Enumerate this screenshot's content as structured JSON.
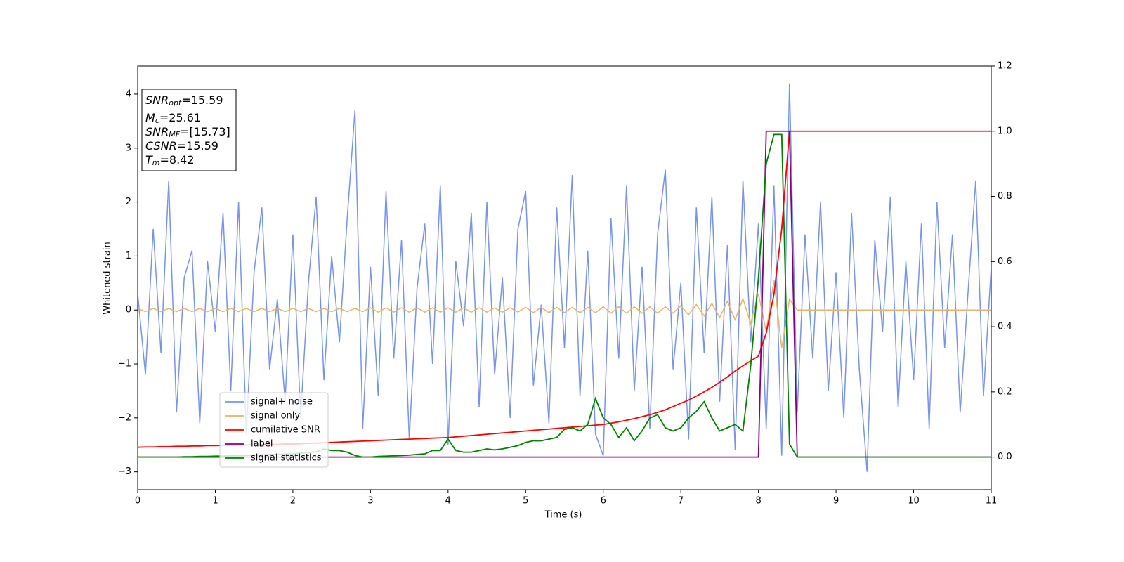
{
  "chart_data": {
    "type": "line",
    "xlabel": "Time (s)",
    "ylabel": "Whitened strain",
    "x": [
      0,
      0.1,
      0.2,
      0.3,
      0.4,
      0.5,
      0.6,
      0.7,
      0.8,
      0.9,
      1,
      1.1,
      1.2,
      1.3,
      1.4,
      1.5,
      1.6,
      1.7,
      1.8,
      1.9,
      2,
      2.1,
      2.2,
      2.3,
      2.4,
      2.5,
      2.6,
      2.7,
      2.8,
      2.9,
      3,
      3.1,
      3.2,
      3.3,
      3.4,
      3.5,
      3.6,
      3.7,
      3.8,
      3.9,
      4,
      4.1,
      4.2,
      4.3,
      4.4,
      4.5,
      4.6,
      4.7,
      4.8,
      4.9,
      5,
      5.1,
      5.2,
      5.3,
      5.4,
      5.5,
      5.6,
      5.7,
      5.8,
      5.9,
      6,
      6.1,
      6.2,
      6.3,
      6.4,
      6.5,
      6.6,
      6.7,
      6.8,
      6.9,
      7,
      7.1,
      7.2,
      7.3,
      7.4,
      7.5,
      7.6,
      7.7,
      7.8,
      7.9,
      8,
      8.1,
      8.2,
      8.3,
      8.4,
      8.5,
      8.6,
      8.7,
      8.8,
      8.9,
      9,
      9.1,
      9.2,
      9.3,
      9.4,
      9.5,
      9.6,
      9.7,
      9.8,
      9.9,
      10,
      10.1,
      10.2,
      10.3,
      10.4,
      10.5,
      10.6,
      10.7,
      10.8,
      10.9,
      11
    ],
    "series": [
      {
        "name": "signal+ noise",
        "color": "#7894e6",
        "axis": "y",
        "values": [
          0.3,
          -1.2,
          1.5,
          -0.8,
          2.4,
          -1.9,
          0.6,
          1.1,
          -2.1,
          0.9,
          -0.4,
          1.8,
          -1.5,
          2.0,
          -2.3,
          0.7,
          1.9,
          -1.1,
          0.2,
          -1.7,
          1.4,
          -2.0,
          0.5,
          2.1,
          -1.3,
          1.0,
          -0.6,
          1.7,
          3.7,
          -2.2,
          0.8,
          -1.6,
          2.2,
          -0.9,
          1.3,
          -2.4,
          0.4,
          1.6,
          -1.0,
          2.3,
          -2.5,
          0.9,
          -0.3,
          1.8,
          -1.8,
          2.0,
          -1.2,
          0.6,
          -2.0,
          1.5,
          2.2,
          -1.4,
          0.1,
          -2.1,
          1.9,
          -0.7,
          2.5,
          -1.6,
          1.1,
          -2.3,
          -2.7,
          1.7,
          -0.9,
          2.3,
          -1.5,
          0.8,
          -2.2,
          1.4,
          2.6,
          -1.1,
          0.5,
          -2.4,
          1.9,
          -0.8,
          2.1,
          -1.7,
          1.2,
          -2.6,
          2.4,
          -0.6,
          1.6,
          -2.2,
          2.3,
          -2.7,
          4.2,
          -1.9,
          1.4,
          -0.9,
          2.0,
          -1.5,
          0.7,
          -2.0,
          1.8,
          -1.1,
          -3.0,
          1.3,
          -0.4,
          2.1,
          -1.8,
          0.9,
          -1.3,
          1.6,
          -2.2,
          2.0,
          -0.7,
          1.4,
          -1.9,
          0.3,
          2.4,
          -1.6,
          0.8
        ]
      },
      {
        "name": "signal only",
        "color": "#e8b36a",
        "axis": "y",
        "values": [
          0.03,
          -0.03,
          0.03,
          -0.03,
          0.03,
          -0.03,
          0.03,
          -0.03,
          0.03,
          -0.03,
          0.03,
          -0.03,
          0.03,
          -0.03,
          0.03,
          -0.03,
          0.03,
          -0.03,
          0.03,
          -0.03,
          0.03,
          -0.03,
          0.03,
          -0.03,
          0.03,
          -0.03,
          0.03,
          -0.03,
          0.03,
          -0.03,
          0.04,
          -0.04,
          0.04,
          -0.04,
          0.04,
          -0.04,
          0.04,
          -0.04,
          0.04,
          -0.04,
          0.04,
          -0.04,
          0.04,
          -0.04,
          0.04,
          -0.04,
          0.04,
          -0.04,
          0.04,
          -0.04,
          0.05,
          -0.05,
          0.05,
          -0.05,
          0.05,
          -0.05,
          0.05,
          -0.05,
          0.05,
          -0.05,
          0.06,
          -0.06,
          0.06,
          -0.06,
          0.06,
          -0.06,
          0.06,
          -0.06,
          0.06,
          -0.06,
          0.08,
          -0.09,
          0.1,
          -0.11,
          0.12,
          -0.14,
          0.16,
          -0.18,
          0.21,
          -0.25,
          0.3,
          -0.4,
          0.55,
          -0.7,
          0.2,
          0,
          0,
          0,
          0,
          0,
          0,
          0,
          0,
          0,
          0,
          0,
          0,
          0,
          0,
          0,
          0,
          0,
          0,
          0,
          0,
          0,
          0,
          0,
          0,
          0,
          0
        ]
      },
      {
        "name": "cumilative SNR",
        "color": "#ff0000",
        "axis": "y2",
        "values": [
          0.03,
          0.031,
          0.031,
          0.032,
          0.032,
          0.033,
          0.033,
          0.034,
          0.034,
          0.035,
          0.035,
          0.036,
          0.036,
          0.037,
          0.037,
          0.038,
          0.038,
          0.039,
          0.039,
          0.04,
          0.04,
          0.041,
          0.042,
          0.043,
          0.044,
          0.045,
          0.046,
          0.047,
          0.048,
          0.049,
          0.05,
          0.051,
          0.052,
          0.053,
          0.054,
          0.055,
          0.056,
          0.057,
          0.058,
          0.059,
          0.06,
          0.062,
          0.064,
          0.066,
          0.068,
          0.07,
          0.072,
          0.074,
          0.076,
          0.078,
          0.08,
          0.082,
          0.084,
          0.086,
          0.088,
          0.09,
          0.092,
          0.094,
          0.096,
          0.098,
          0.1,
          0.104,
          0.108,
          0.113,
          0.118,
          0.124,
          0.13,
          0.137,
          0.145,
          0.155,
          0.165,
          0.175,
          0.187,
          0.2,
          0.214,
          0.229,
          0.246,
          0.264,
          0.28,
          0.295,
          0.31,
          0.38,
          0.5,
          0.7,
          1,
          1,
          1,
          1,
          1,
          1,
          1,
          1,
          1,
          1,
          1,
          1,
          1,
          1,
          1,
          1,
          1,
          1,
          1,
          1,
          1,
          1,
          1,
          1,
          1,
          1,
          1
        ]
      },
      {
        "name": "label",
        "color": "#800080",
        "axis": "y2",
        "values": [
          0,
          0,
          0,
          0,
          0,
          0,
          0,
          0,
          0,
          0,
          0,
          0,
          0,
          0,
          0,
          0,
          0,
          0,
          0,
          0,
          0,
          0,
          0,
          0,
          0,
          0,
          0,
          0,
          0,
          0,
          0,
          0,
          0,
          0,
          0,
          0,
          0,
          0,
          0,
          0,
          0,
          0,
          0,
          0,
          0,
          0,
          0,
          0,
          0,
          0,
          0,
          0,
          0,
          0,
          0,
          0,
          0,
          0,
          0,
          0,
          0,
          0,
          0,
          0,
          0,
          0,
          0,
          0,
          0,
          0,
          0,
          0,
          0,
          0,
          0,
          0,
          0,
          0,
          0,
          0,
          0,
          1,
          1,
          1,
          1,
          0,
          0,
          0,
          0,
          0,
          0,
          0,
          0,
          0,
          0,
          0,
          0,
          0,
          0,
          0,
          0,
          0,
          0,
          0,
          0,
          0,
          0,
          0,
          0,
          0,
          0
        ]
      },
      {
        "name": "signal statistics",
        "color": "#008000",
        "axis": "y2",
        "values": [
          0,
          0,
          0,
          0,
          0,
          0,
          0.001,
          0.001,
          0.002,
          0.002,
          0.003,
          0.003,
          0.004,
          0.004,
          0.005,
          0.006,
          0.007,
          0.008,
          0.008,
          0.009,
          0.01,
          0.012,
          0.014,
          0.016,
          0.025,
          0.02,
          0.02,
          0.015,
          0.005,
          0,
          0,
          0.002,
          0.003,
          0.004,
          0.005,
          0.006,
          0.008,
          0.01,
          0.02,
          0.02,
          0.055,
          0.02,
          0.015,
          0.015,
          0.02,
          0.025,
          0.022,
          0.025,
          0.03,
          0.035,
          0.045,
          0.05,
          0.05,
          0.055,
          0.06,
          0.085,
          0.09,
          0.08,
          0.1,
          0.18,
          0.12,
          0.1,
          0.06,
          0.09,
          0.05,
          0.08,
          0.12,
          0.13,
          0.09,
          0.08,
          0.09,
          0.12,
          0.14,
          0.17,
          0.12,
          0.08,
          0.09,
          0.1,
          0.08,
          0.28,
          0.55,
          0.9,
          0.99,
          0.99,
          0.04,
          0,
          0,
          0,
          0,
          0,
          0,
          0,
          0,
          0,
          0,
          0,
          0,
          0,
          0,
          0,
          0,
          0,
          0,
          0,
          0,
          0,
          0,
          0,
          0,
          0,
          0
        ]
      }
    ],
    "xlim": [
      0,
      11
    ],
    "xticks": [
      0,
      1,
      2,
      3,
      4,
      5,
      6,
      7,
      8,
      9,
      10,
      11
    ],
    "ylim": [
      -3.33,
      4.52
    ],
    "yticks": [
      {
        "value": -3,
        "label": "−3"
      },
      {
        "value": -2,
        "label": "−2"
      },
      {
        "value": -1,
        "label": "−1"
      },
      0,
      1,
      2,
      3,
      4
    ],
    "y2lim": [
      -0.1,
      1.2
    ],
    "y2ticks": [
      {
        "value": 0,
        "label": "0.0"
      },
      0.2,
      0.4,
      0.6,
      0.8,
      {
        "value": 1,
        "label": "1.0"
      },
      1.2
    ],
    "legend": "lower left",
    "annotations": [
      {
        "symbol": "SNR",
        "subscript": "opt",
        "text": "=15.59"
      },
      {
        "symbol": "M",
        "subscript": "c",
        "text": "=25.61"
      },
      {
        "symbol": "SNR",
        "subscript": "MF",
        "text": "=[15.73]"
      },
      {
        "symbol": "CSNR",
        "text": "=15.59"
      },
      {
        "symbol": "T",
        "subscript": "m",
        "text": "=8.42"
      }
    ]
  }
}
